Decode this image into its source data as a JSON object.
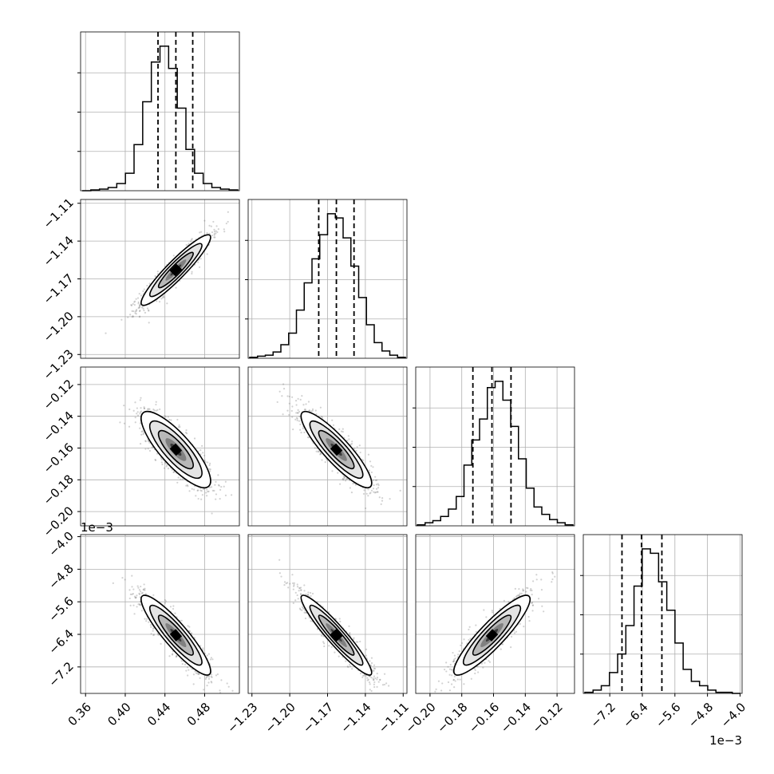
{
  "chart_data": {
    "type": "corner",
    "parameters": [
      {
        "ticks": [
          0.36,
          0.4,
          0.44,
          0.48
        ],
        "tick_labels": [
          "0.36",
          "0.40",
          "0.44",
          "0.48"
        ],
        "range": [
          0.355,
          0.515
        ],
        "median": 0.451,
        "q16": 0.433,
        "q84": 0.468,
        "offset_label": ""
      },
      {
        "ticks": [
          -1.23,
          -1.2,
          -1.17,
          -1.14,
          -1.11
        ],
        "tick_labels": [
          "−1.23",
          "−1.20",
          "−1.17",
          "−1.14",
          "−1.11"
        ],
        "range": [
          -1.233,
          -1.107
        ],
        "median": -1.163,
        "q16": -1.177,
        "q84": -1.149,
        "offset_label": ""
      },
      {
        "ticks": [
          -0.2,
          -0.18,
          -0.16,
          -0.14,
          -0.12
        ],
        "tick_labels": [
          "−0.20",
          "−0.18",
          "−0.16",
          "−0.14",
          "−0.12"
        ],
        "range": [
          -0.209,
          -0.109
        ],
        "median": -0.161,
        "q16": -0.173,
        "q84": -0.149,
        "offset_label": ""
      },
      {
        "ticks": [
          -7.2,
          -6.4,
          -5.6,
          -4.8,
          -4.0
        ],
        "tick_labels": [
          "−7.2",
          "−6.4",
          "−5.6",
          "−4.8",
          "−4.0"
        ],
        "range": [
          -7.85,
          -3.95
        ],
        "median": -6.42,
        "q16": -6.9,
        "q84": -5.92,
        "offset_label": "1e−3"
      }
    ],
    "histograms": [
      {
        "counts": [
          0,
          1,
          2,
          4,
          9,
          22,
          58,
          112,
          162,
          182,
          154,
          104,
          52,
          22,
          9,
          4,
          2,
          1
        ]
      },
      {
        "counts": [
          1,
          2,
          3,
          6,
          13,
          24,
          46,
          72,
          95,
          118,
          138,
          134,
          115,
          88,
          58,
          32,
          15,
          7,
          3,
          1
        ]
      },
      {
        "counts": [
          1,
          3,
          5,
          9,
          16,
          28,
          58,
          82,
          102,
          132,
          138,
          120,
          95,
          64,
          36,
          18,
          11,
          6,
          3,
          1
        ]
      },
      {
        "counts": [
          1,
          3,
          7,
          19,
          36,
          62,
          98,
          132,
          128,
          102,
          76,
          46,
          22,
          11,
          7,
          3,
          1,
          1,
          0
        ]
      }
    ],
    "correlations": {
      "1-0": 0.93,
      "2-0": -0.82,
      "2-1": -0.88,
      "3-0": -0.9,
      "3-1": -0.94,
      "3-2": 0.9
    },
    "grid": true
  }
}
